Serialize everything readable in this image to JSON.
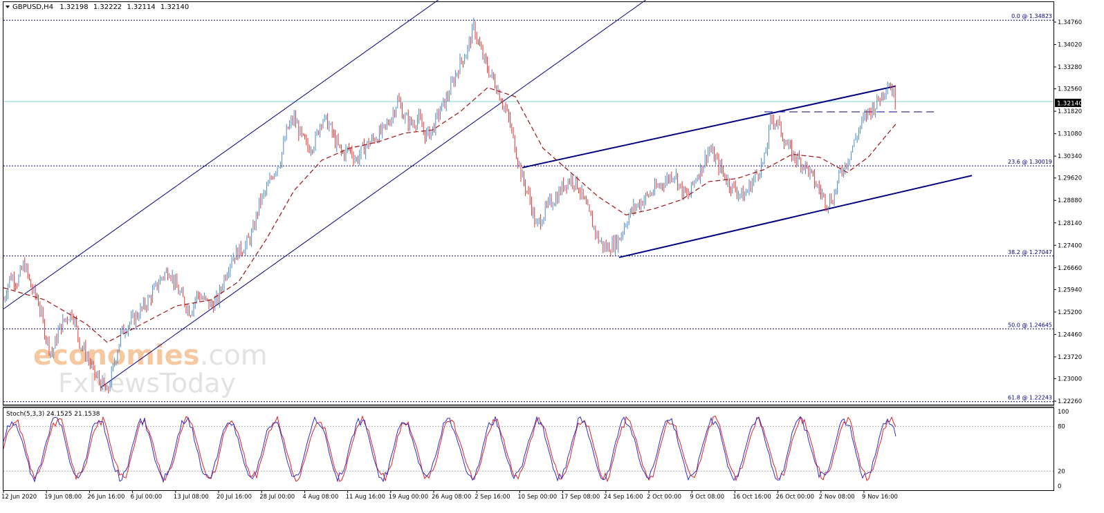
{
  "header": {
    "symbol": "GBPUSD,H4",
    "open": "1.32198",
    "high": "1.32222",
    "low": "1.32114",
    "close": "1.32140"
  },
  "watermark": {
    "line1_a": "economies",
    "line1_b": ".com",
    "line2": "FxNewsToday"
  },
  "price_label": "1.32140",
  "stochastic": {
    "label": "Stoch(5,3,3) 24.1525 21.1538",
    "levels": [
      80,
      20
    ],
    "scale": [
      "100",
      "80",
      "20",
      "0"
    ]
  },
  "fib_levels": [
    {
      "label": "0.0 @ 1.34823",
      "price": 1.34823
    },
    {
      "label": "23.6 @ 1.30019",
      "price": 1.30019
    },
    {
      "label": "38.2 @ 1.27047",
      "price": 1.27047
    },
    {
      "label": "50.0 @ 1.24645",
      "price": 1.24645
    },
    {
      "label": "61.8 @ 1.22243",
      "price": 1.22243
    }
  ],
  "colors": {
    "bull": "#4a86c6",
    "bear": "#e0302a",
    "ma": "#a01010",
    "trendline": "#000080",
    "fib": "#000080",
    "stoch_main": "#2c2cc8",
    "stoch_signal": "#e02020",
    "current_price_line": "#7fd4d4"
  },
  "chart_data": {
    "type": "candlestick",
    "symbol": "GBPUSD",
    "timeframe": "H4",
    "ylim": [
      1.2226,
      1.3476
    ],
    "y_ticks": [
      "1.34760",
      "1.34020",
      "1.33280",
      "1.32560",
      "1.31820",
      "1.31080",
      "1.30340",
      "1.29620",
      "1.28880",
      "1.28140",
      "1.27400",
      "1.26660",
      "1.25940",
      "1.25200",
      "1.24460",
      "1.23720",
      "1.23000",
      "1.22260"
    ],
    "x_ticks": [
      "12 Jun 2020",
      "19 Jun 08:00",
      "26 Jun 16:00",
      "6 Jul 00:00",
      "13 Jul 08:00",
      "20 Jul 16:00",
      "28 Jul 00:00",
      "4 Aug 08:00",
      "11 Aug 16:00",
      "19 Aug 00:00",
      "26 Aug 08:00",
      "2 Sep 16:00",
      "10 Sep 00:00",
      "17 Sep 08:00",
      "24 Sep 16:00",
      "2 Oct 00:00",
      "9 Oct 08:00",
      "16 Oct 16:00",
      "26 Oct 00:00",
      "2 Nov 08:00",
      "9 Nov 16:00"
    ],
    "close_path": [
      [
        0,
        1.256
      ],
      [
        10,
        1.264
      ],
      [
        20,
        1.262
      ],
      [
        30,
        1.268
      ],
      [
        40,
        1.26
      ],
      [
        50,
        1.256
      ],
      [
        60,
        1.245
      ],
      [
        70,
        1.238
      ],
      [
        80,
        1.246
      ],
      [
        90,
        1.25
      ],
      [
        100,
        1.252
      ],
      [
        110,
        1.242
      ],
      [
        120,
        1.238
      ],
      [
        130,
        1.232
      ],
      [
        140,
        1.229
      ],
      [
        150,
        1.225
      ],
      [
        160,
        1.235
      ],
      [
        170,
        1.245
      ],
      [
        180,
        1.248
      ],
      [
        190,
        1.25
      ],
      [
        200,
        1.253
      ],
      [
        210,
        1.256
      ],
      [
        220,
        1.26
      ],
      [
        230,
        1.264
      ],
      [
        240,
        1.266
      ],
      [
        250,
        1.26
      ],
      [
        260,
        1.256
      ],
      [
        270,
        1.252
      ],
      [
        280,
        1.258
      ],
      [
        290,
        1.256
      ],
      [
        300,
        1.254
      ],
      [
        310,
        1.256
      ],
      [
        320,
        1.264
      ],
      [
        330,
        1.27
      ],
      [
        340,
        1.272
      ],
      [
        350,
        1.274
      ],
      [
        360,
        1.278
      ],
      [
        370,
        1.288
      ],
      [
        380,
        1.292
      ],
      [
        390,
        1.298
      ],
      [
        400,
        1.302
      ],
      [
        410,
        1.312
      ],
      [
        420,
        1.316
      ],
      [
        430,
        1.31
      ],
      [
        440,
        1.306
      ],
      [
        450,
        1.308
      ],
      [
        460,
        1.316
      ],
      [
        470,
        1.314
      ],
      [
        480,
        1.308
      ],
      [
        490,
        1.304
      ],
      [
        500,
        1.306
      ],
      [
        510,
        1.302
      ],
      [
        520,
        1.306
      ],
      [
        530,
        1.308
      ],
      [
        540,
        1.31
      ],
      [
        550,
        1.312
      ],
      [
        560,
        1.316
      ],
      [
        570,
        1.322
      ],
      [
        580,
        1.316
      ],
      [
        590,
        1.314
      ],
      [
        600,
        1.316
      ],
      [
        610,
        1.31
      ],
      [
        620,
        1.312
      ],
      [
        630,
        1.318
      ],
      [
        640,
        1.322
      ],
      [
        650,
        1.328
      ],
      [
        660,
        1.334
      ],
      [
        670,
        1.338
      ],
      [
        680,
        1.346
      ],
      [
        690,
        1.338
      ],
      [
        700,
        1.332
      ],
      [
        710,
        1.328
      ],
      [
        720,
        1.322
      ],
      [
        730,
        1.316
      ],
      [
        740,
        1.306
      ],
      [
        750,
        1.296
      ],
      [
        760,
        1.29
      ],
      [
        770,
        1.28
      ],
      [
        780,
        1.284
      ],
      [
        790,
        1.288
      ],
      [
        800,
        1.29
      ],
      [
        810,
        1.294
      ],
      [
        820,
        1.296
      ],
      [
        830,
        1.294
      ],
      [
        840,
        1.288
      ],
      [
        850,
        1.282
      ],
      [
        860,
        1.276
      ],
      [
        870,
        1.273
      ],
      [
        880,
        1.274
      ],
      [
        890,
        1.276
      ],
      [
        900,
        1.282
      ],
      [
        910,
        1.286
      ],
      [
        920,
        1.288
      ],
      [
        930,
        1.29
      ],
      [
        940,
        1.292
      ],
      [
        950,
        1.294
      ],
      [
        960,
        1.296
      ],
      [
        970,
        1.298
      ],
      [
        980,
        1.292
      ],
      [
        990,
        1.29
      ],
      [
        1000,
        1.296
      ],
      [
        1010,
        1.3
      ],
      [
        1020,
        1.306
      ],
      [
        1030,
        1.302
      ],
      [
        1040,
        1.298
      ],
      [
        1050,
        1.294
      ],
      [
        1060,
        1.292
      ],
      [
        1070,
        1.29
      ],
      [
        1080,
        1.294
      ],
      [
        1090,
        1.298
      ],
      [
        1100,
        1.302
      ],
      [
        1110,
        1.316
      ],
      [
        1120,
        1.314
      ],
      [
        1130,
        1.308
      ],
      [
        1140,
        1.304
      ],
      [
        1150,
        1.302
      ],
      [
        1160,
        1.3
      ],
      [
        1170,
        1.296
      ],
      [
        1180,
        1.292
      ],
      [
        1190,
        1.288
      ],
      [
        1200,
        1.29
      ],
      [
        1210,
        1.298
      ],
      [
        1220,
        1.302
      ],
      [
        1230,
        1.308
      ],
      [
        1240,
        1.314
      ],
      [
        1250,
        1.318
      ],
      [
        1260,
        1.32
      ],
      [
        1270,
        1.324
      ],
      [
        1280,
        1.328
      ],
      [
        1290,
        1.3214
      ]
    ],
    "moving_average": [
      [
        0,
        1.26
      ],
      [
        60,
        1.256
      ],
      [
        120,
        1.248
      ],
      [
        150,
        1.242
      ],
      [
        200,
        1.248
      ],
      [
        250,
        1.254
      ],
      [
        300,
        1.256
      ],
      [
        340,
        1.262
      ],
      [
        380,
        1.276
      ],
      [
        420,
        1.292
      ],
      [
        460,
        1.302
      ],
      [
        500,
        1.306
      ],
      [
        540,
        1.308
      ],
      [
        580,
        1.311
      ],
      [
        620,
        1.312
      ],
      [
        660,
        1.318
      ],
      [
        700,
        1.326
      ],
      [
        740,
        1.323
      ],
      [
        780,
        1.306
      ],
      [
        820,
        1.298
      ],
      [
        860,
        1.29
      ],
      [
        900,
        1.284
      ],
      [
        940,
        1.286
      ],
      [
        980,
        1.289
      ],
      [
        1020,
        1.295
      ],
      [
        1060,
        1.296
      ],
      [
        1100,
        1.299
      ],
      [
        1140,
        1.304
      ],
      [
        1180,
        1.303
      ],
      [
        1220,
        1.298
      ],
      [
        1250,
        1.303
      ],
      [
        1290,
        1.314
      ]
    ]
  }
}
